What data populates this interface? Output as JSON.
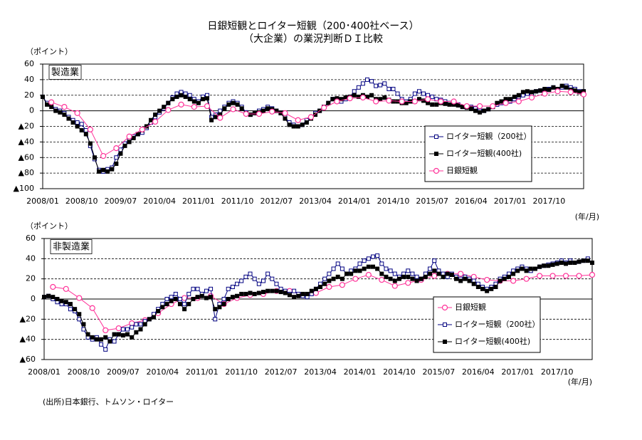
{
  "title": [
    "日銀短観とロイター短観（200･400社ベース）",
    "（大企業）の業況判断ＤＩ比較"
  ],
  "source": "(出所)日本銀行、トムソン・ロイター",
  "chart_data": [
    {
      "type": "line",
      "panel_label": "製造業",
      "y_unit": "（ポイント）",
      "x_unit": "(年/月)",
      "categories": [
        "2008/01",
        null,
        null,
        null,
        null,
        null,
        null,
        null,
        null,
        "2008/10",
        null,
        null,
        null,
        null,
        null,
        null,
        null,
        null,
        "2009/07",
        null,
        null,
        null,
        null,
        null,
        null,
        null,
        null,
        "2010/04",
        null,
        null,
        null,
        null,
        null,
        null,
        null,
        null,
        "2011/01",
        null,
        null,
        null,
        null,
        null,
        null,
        null,
        null,
        "2011/10",
        null,
        null,
        null,
        null,
        null,
        null,
        null,
        null,
        "2012/07",
        null,
        null,
        null,
        null,
        null,
        null,
        null,
        null,
        "2013/04",
        null,
        null,
        null,
        null,
        null,
        null,
        null,
        null,
        "2014/01",
        null,
        null,
        null,
        null,
        null,
        null,
        null,
        null,
        "2014/10",
        null,
        null,
        null,
        null,
        null,
        null,
        null,
        null,
        "2015/07",
        null,
        null,
        null,
        null,
        null,
        null,
        null,
        null,
        "2016/04",
        null,
        null,
        null,
        null,
        null,
        null,
        null,
        null,
        "2017/01",
        null,
        null,
        null,
        null,
        null,
        null,
        null,
        null,
        "2017/10",
        null,
        null,
        null,
        null,
        null,
        null,
        null,
        null
      ],
      "ylim": [
        -100,
        60
      ],
      "yticks": [
        60,
        40,
        20,
        0,
        {
          "value": -20,
          "label": "▲20"
        },
        {
          "value": -40,
          "label": "▲40"
        },
        {
          "value": -60,
          "label": "▲60"
        },
        {
          "value": -80,
          "label": "▲80"
        },
        {
          "value": -100,
          "label": "▲100"
        }
      ],
      "grid": true,
      "legend": "lower right",
      "series": [
        {
          "name": "ロイター短観（200社）",
          "color": "#000080",
          "marker": "open-square",
          "values": [
            18,
            10,
            8,
            2,
            0,
            -3,
            -8,
            -12,
            -15,
            -17,
            -25,
            -45,
            -62,
            -76,
            -78,
            -75,
            -73,
            -60,
            -50,
            -42,
            -38,
            -33,
            -30,
            -28,
            -22,
            -15,
            -8,
            -2,
            3,
            10,
            17,
            22,
            24,
            22,
            20,
            15,
            12,
            18,
            20,
            -8,
            -5,
            0,
            5,
            10,
            12,
            10,
            5,
            -2,
            -5,
            -3,
            0,
            2,
            5,
            3,
            0,
            -3,
            -8,
            -15,
            -18,
            -20,
            -18,
            -12,
            -8,
            -3,
            0,
            5,
            10,
            15,
            15,
            12,
            15,
            18,
            25,
            30,
            35,
            40,
            38,
            32,
            33,
            35,
            28,
            28,
            22,
            15,
            12,
            15,
            22,
            25,
            22,
            20,
            18,
            15,
            14,
            12,
            10,
            10,
            8,
            5,
            5,
            5,
            3,
            0,
            0,
            2,
            5,
            8,
            10,
            12,
            12,
            15,
            18,
            20,
            22,
            22,
            25,
            26,
            27,
            28,
            30,
            27,
            30,
            32,
            30,
            28,
            25,
            25
          ]
        },
        {
          "name": "ロイター短観(400社)",
          "color": "#000000",
          "marker": "filled-square",
          "values": [
            18,
            8,
            5,
            0,
            -2,
            -5,
            -10,
            -15,
            -20,
            -25,
            -30,
            -42,
            -60,
            -78,
            -76,
            -78,
            -75,
            -68,
            -55,
            -45,
            -40,
            -35,
            -30,
            -25,
            -20,
            -12,
            -5,
            0,
            5,
            10,
            15,
            18,
            20,
            18,
            15,
            12,
            10,
            15,
            16,
            -12,
            -8,
            -5,
            3,
            8,
            10,
            8,
            3,
            -3,
            -5,
            -3,
            -2,
            0,
            3,
            2,
            0,
            -3,
            -10,
            -18,
            -20,
            -20,
            -18,
            -15,
            -10,
            -5,
            0,
            5,
            10,
            15,
            16,
            15,
            17,
            18,
            20,
            18,
            20,
            18,
            20,
            15,
            15,
            17,
            14,
            12,
            12,
            10,
            10,
            12,
            12,
            15,
            13,
            10,
            8,
            8,
            10,
            9,
            8,
            8,
            7,
            5,
            4,
            3,
            0,
            -2,
            0,
            2,
            5,
            10,
            12,
            15,
            15,
            18,
            20,
            24,
            25,
            24,
            25,
            26,
            28,
            27,
            30,
            28,
            32,
            30,
            27,
            26,
            24,
            25
          ]
        },
        {
          "name": "日銀短観",
          "color": "#ff3399",
          "marker": "circle",
          "x": [
            "2008/03",
            "2008/06",
            "2008/09",
            "2008/12",
            "2009/03",
            "2009/06",
            "2009/09",
            "2009/12",
            "2010/03",
            "2010/06",
            "2010/09",
            "2010/12",
            "2011/03",
            "2011/06",
            "2011/09",
            "2011/12",
            "2012/03",
            "2012/06",
            "2012/09",
            "2012/12",
            "2013/03",
            "2013/06",
            "2013/09",
            "2013/12",
            "2014/03",
            "2014/06",
            "2014/09",
            "2014/12",
            "2015/03",
            "2015/06",
            "2015/09",
            "2015/12",
            "2016/03",
            "2016/06",
            "2016/09",
            "2016/12",
            "2017/03",
            "2017/06",
            "2017/09",
            "2017/12",
            "2018/03",
            "2018/06"
          ],
          "values": [
            11,
            5,
            -3,
            -24,
            -58,
            -48,
            -33,
            -24,
            -14,
            1,
            8,
            5,
            6,
            -9,
            2,
            -4,
            -4,
            -1,
            -3,
            -12,
            -8,
            4,
            12,
            16,
            17,
            12,
            13,
            12,
            12,
            15,
            12,
            12,
            6,
            6,
            6,
            10,
            12,
            17,
            22,
            25,
            24,
            21
          ]
        }
      ]
    },
    {
      "type": "line",
      "panel_label": "非製造業",
      "y_unit": "（ポイント）",
      "x_unit": "(年/月)",
      "categories": [
        "2008/01",
        null,
        null,
        null,
        null,
        null,
        null,
        null,
        null,
        "2008/10",
        null,
        null,
        null,
        null,
        null,
        null,
        null,
        null,
        "2009/07",
        null,
        null,
        null,
        null,
        null,
        null,
        null,
        null,
        "2010/04",
        null,
        null,
        null,
        null,
        null,
        null,
        null,
        null,
        "2011/01",
        null,
        null,
        null,
        null,
        null,
        null,
        null,
        null,
        "2011/10",
        null,
        null,
        null,
        null,
        null,
        null,
        null,
        null,
        "2012/07",
        null,
        null,
        null,
        null,
        null,
        null,
        null,
        null,
        "2013/04",
        null,
        null,
        null,
        null,
        null,
        null,
        null,
        null,
        "2014/01",
        null,
        null,
        null,
        null,
        null,
        null,
        null,
        null,
        "2014/10",
        null,
        null,
        null,
        null,
        null,
        null,
        null,
        null,
        "2015/07",
        null,
        null,
        null,
        null,
        null,
        null,
        null,
        null,
        "2016/04",
        null,
        null,
        null,
        null,
        null,
        null,
        null,
        null,
        "2017/01",
        null,
        null,
        null,
        null,
        null,
        null,
        null,
        null,
        "2017/10",
        null,
        null,
        null,
        null,
        null,
        null,
        null,
        null
      ],
      "ylim": [
        -60,
        60
      ],
      "yticks": [
        60,
        40,
        20,
        0,
        {
          "value": -20,
          "label": "▲20"
        },
        {
          "value": -40,
          "label": "▲40"
        },
        {
          "value": -60,
          "label": "▲60"
        }
      ],
      "grid": true,
      "legend": "lower right",
      "series": [
        {
          "name": "日銀短観",
          "color": "#ff3399",
          "marker": "circle",
          "x": [
            "2008/03",
            "2008/06",
            "2008/09",
            "2008/12",
            "2009/03",
            "2009/06",
            "2009/09",
            "2009/12",
            "2010/03",
            "2010/06",
            "2010/09",
            "2010/12",
            "2011/03",
            "2011/06",
            "2011/09",
            "2011/12",
            "2012/03",
            "2012/06",
            "2012/09",
            "2012/12",
            "2013/03",
            "2013/06",
            "2013/09",
            "2013/12",
            "2014/03",
            "2014/06",
            "2014/09",
            "2014/12",
            "2015/03",
            "2015/06",
            "2015/09",
            "2015/12",
            "2016/03",
            "2016/06",
            "2016/09",
            "2016/12",
            "2017/03",
            "2017/06",
            "2017/09",
            "2017/12",
            "2018/03",
            "2018/06"
          ],
          "values": [
            12,
            10,
            1,
            -9,
            -31,
            -29,
            -24,
            -21,
            -14,
            -5,
            1,
            1,
            3,
            -5,
            1,
            4,
            5,
            8,
            8,
            4,
            6,
            12,
            14,
            20,
            24,
            19,
            13,
            16,
            19,
            23,
            25,
            25,
            22,
            19,
            18,
            18,
            20,
            23,
            23,
            23,
            23,
            24
          ]
        },
        {
          "name": "ロイター短観（200社）",
          "color": "#000080",
          "marker": "open-square",
          "values": [
            2,
            3,
            0,
            -3,
            -5,
            -5,
            -10,
            -12,
            -20,
            -30,
            -38,
            -40,
            -38,
            -45,
            -50,
            -40,
            -42,
            -35,
            -30,
            -30,
            -28,
            -25,
            -25,
            -22,
            -20,
            -15,
            -10,
            -5,
            0,
            2,
            5,
            0,
            -5,
            5,
            10,
            10,
            5,
            8,
            10,
            -20,
            -5,
            0,
            10,
            12,
            15,
            18,
            22,
            25,
            20,
            15,
            18,
            25,
            20,
            15,
            10,
            8,
            5,
            8,
            5,
            3,
            2,
            5,
            10,
            15,
            20,
            25,
            30,
            35,
            30,
            25,
            28,
            30,
            35,
            38,
            40,
            42,
            43,
            35,
            30,
            28,
            25,
            22,
            25,
            28,
            25,
            22,
            20,
            25,
            30,
            38,
            28,
            25,
            22,
            25,
            22,
            20,
            22,
            20,
            18,
            15,
            12,
            10,
            12,
            15,
            20,
            22,
            25,
            28,
            30,
            32,
            30,
            28,
            30,
            32,
            33,
            34,
            35,
            36,
            38,
            36,
            38,
            36,
            37,
            38,
            40,
            36
          ]
        },
        {
          "name": "ロイター短観(400社)",
          "color": "#000000",
          "marker": "filled-square",
          "values": [
            2,
            3,
            2,
            0,
            -2,
            -3,
            -5,
            -10,
            -15,
            -25,
            -35,
            -38,
            -40,
            -40,
            -38,
            -42,
            -35,
            -35,
            -36,
            -35,
            -38,
            -33,
            -30,
            -25,
            -20,
            -18,
            -12,
            -8,
            -5,
            -2,
            0,
            -5,
            -10,
            -5,
            0,
            2,
            3,
            1,
            2,
            -10,
            -8,
            -5,
            0,
            2,
            3,
            5,
            5,
            6,
            5,
            6,
            7,
            8,
            8,
            8,
            7,
            6,
            4,
            2,
            3,
            5,
            5,
            8,
            10,
            12,
            15,
            18,
            20,
            22,
            20,
            25,
            25,
            28,
            28,
            30,
            32,
            32,
            30,
            25,
            22,
            20,
            18,
            20,
            22,
            22,
            20,
            18,
            20,
            22,
            25,
            28,
            25,
            22,
            25,
            24,
            20,
            18,
            20,
            18,
            15,
            12,
            10,
            8,
            10,
            12,
            18,
            20,
            22,
            25,
            28,
            30,
            28,
            30,
            30,
            32,
            33,
            33,
            34,
            35,
            36,
            35,
            36,
            36,
            37,
            38,
            38,
            36
          ]
        }
      ]
    }
  ]
}
